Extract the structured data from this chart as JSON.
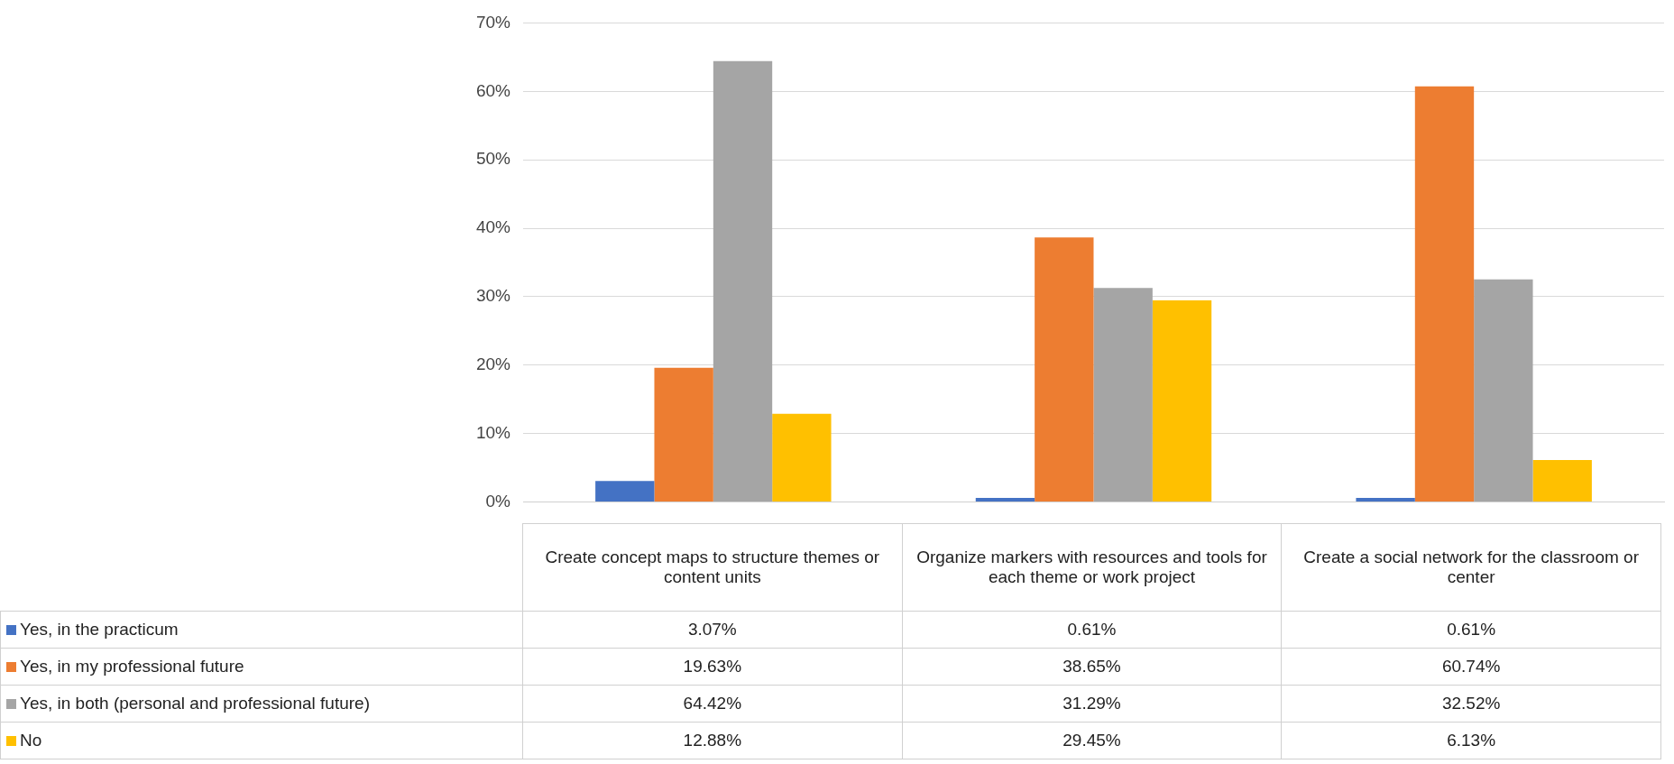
{
  "chart_data": {
    "type": "bar",
    "categories": [
      "Create concept maps to structure themes or content units",
      "Organize markers with resources and tools for each theme or work project",
      "Create a social network for the classroom or center"
    ],
    "series": [
      {
        "name": "Yes, in the practicum",
        "color": "#4472c4",
        "values": [
          3.07,
          0.61,
          0.61
        ],
        "value_labels": [
          "3.07%",
          "0.61%",
          "0.61%"
        ]
      },
      {
        "name": "Yes, in my professional future",
        "color": "#ed7d31",
        "values": [
          19.63,
          38.65,
          60.74
        ],
        "value_labels": [
          "19.63%",
          "38.65%",
          "60.74%"
        ]
      },
      {
        "name": "Yes, in both (personal and professional future)",
        "color": "#a5a5a5",
        "values": [
          64.42,
          31.29,
          32.52
        ],
        "value_labels": [
          "64.42%",
          "31.29%",
          "32.52%"
        ]
      },
      {
        "name": "No",
        "color": "#ffc000",
        "values": [
          12.88,
          29.45,
          6.13
        ],
        "value_labels": [
          "12.88%",
          "29.45%",
          "6.13%"
        ]
      }
    ],
    "ylim": [
      0,
      70
    ],
    "yticks": [
      {
        "value": 0,
        "label": "0%"
      },
      {
        "value": 10,
        "label": "10%"
      },
      {
        "value": 20,
        "label": "20%"
      },
      {
        "value": 30,
        "label": "30%"
      },
      {
        "value": 40,
        "label": "40%"
      },
      {
        "value": 50,
        "label": "50%"
      },
      {
        "value": 60,
        "label": "60%"
      },
      {
        "value": 70,
        "label": "70%"
      }
    ],
    "grid": "y",
    "legend": "bottom"
  }
}
